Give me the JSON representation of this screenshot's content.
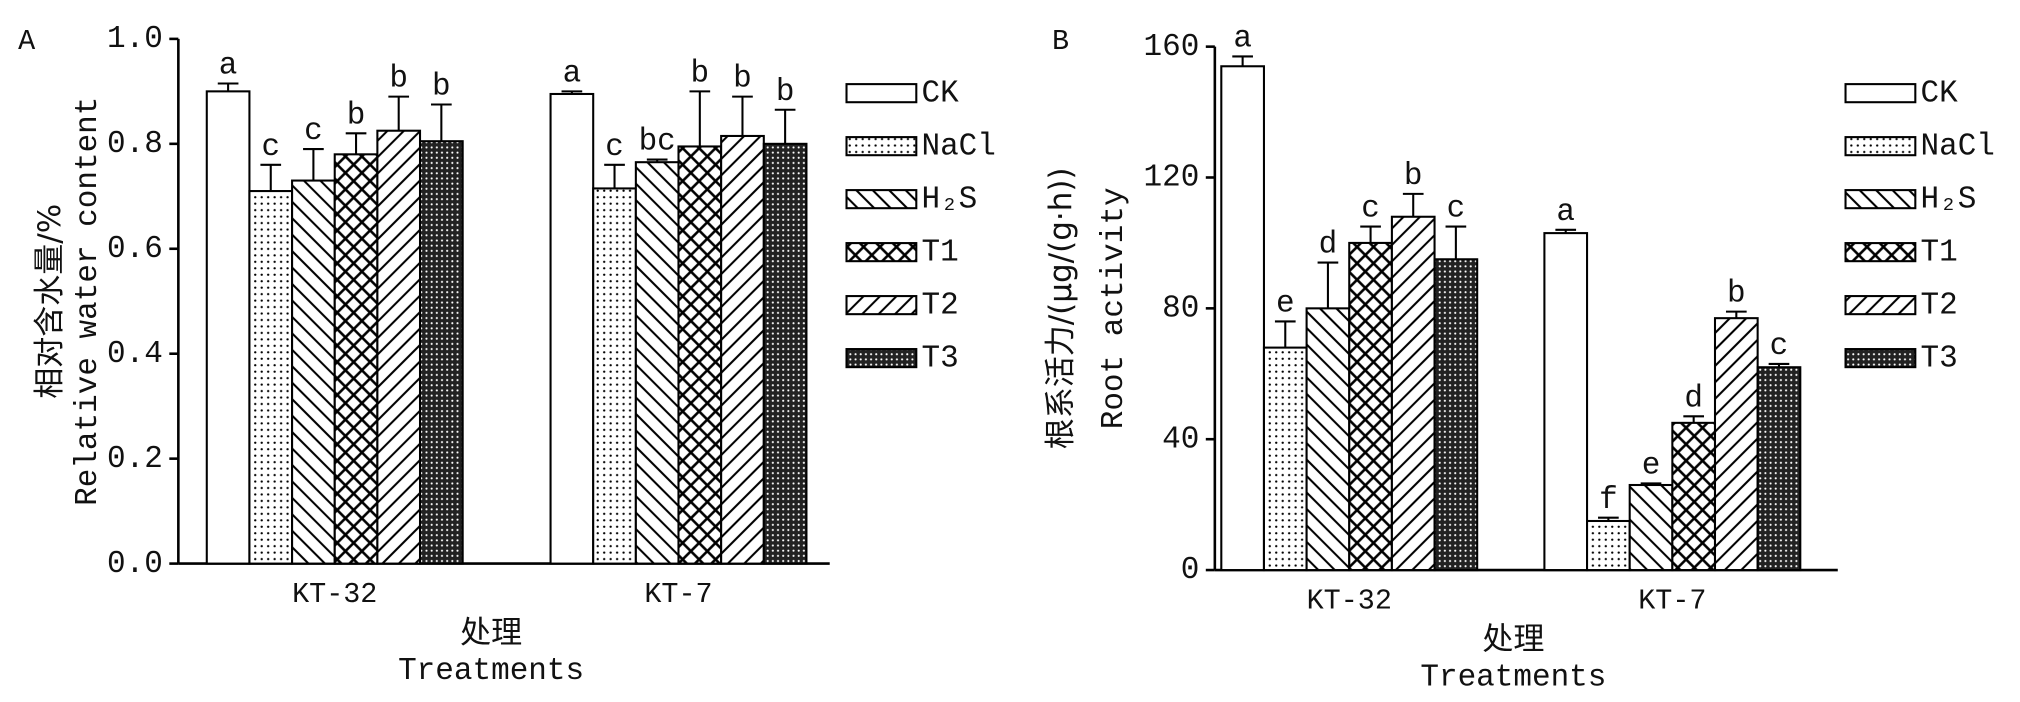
{
  "chart_data": [
    {
      "type": "bar",
      "panel": "A",
      "ylabel": [
        "相对含水量/%",
        "Relative water content"
      ],
      "xlabel": [
        "处理",
        "Treatments"
      ],
      "categories": [
        "KT-32",
        "KT-7"
      ],
      "ylim": [
        0,
        1.0
      ],
      "yticks": [
        {
          "value": 0,
          "label": "0.0"
        },
        0.2,
        0.4,
        0.6,
        0.8,
        {
          "value": 1.0,
          "label": "1.0"
        }
      ],
      "series": [
        {
          "name": "CK",
          "color": "#ffffff",
          "pattern": "solid",
          "values": [
            0.9,
            0.895
          ],
          "errors": [
            0.015,
            0.005
          ],
          "letters": [
            "a",
            "a"
          ]
        },
        {
          "name": "NaCl",
          "color": "#ffffff",
          "pattern": "dots",
          "values": [
            0.71,
            0.715
          ],
          "errors": [
            0.05,
            0.045
          ],
          "letters": [
            "c",
            "c"
          ]
        },
        {
          "name": "H₂S",
          "color": "#ffffff",
          "pattern": "backslash",
          "values": [
            0.73,
            0.765
          ],
          "errors": [
            0.06,
            0.005
          ],
          "letters": [
            "c",
            "bc"
          ]
        },
        {
          "name": "T1",
          "color": "#ffffff",
          "pattern": "crosshatch",
          "values": [
            0.78,
            0.795
          ],
          "errors": [
            0.04,
            0.105
          ],
          "letters": [
            "b",
            "b"
          ]
        },
        {
          "name": "T2",
          "color": "#ffffff",
          "pattern": "slash",
          "values": [
            0.825,
            0.815
          ],
          "errors": [
            0.065,
            0.075
          ],
          "letters": [
            "b",
            "b"
          ]
        },
        {
          "name": "T3",
          "color": "#222222",
          "pattern": "dense",
          "values": [
            0.805,
            0.8
          ],
          "errors": [
            0.07,
            0.065
          ],
          "letters": [
            "b",
            "b"
          ]
        }
      ]
    },
    {
      "type": "bar",
      "panel": "B",
      "ylabel": [
        "根系活力/(μg/(g·h))",
        "Root activity"
      ],
      "xlabel": [
        "处理",
        "Treatments"
      ],
      "categories": [
        "KT-32",
        "KT-7"
      ],
      "ylim": [
        0,
        160
      ],
      "yticks": [
        0,
        40,
        80,
        120,
        160
      ],
      "series": [
        {
          "name": "CK",
          "color": "#ffffff",
          "pattern": "solid",
          "values": [
            154,
            103
          ],
          "errors": [
            3,
            1
          ],
          "letters": [
            "a",
            "a"
          ]
        },
        {
          "name": "NaCl",
          "color": "#ffffff",
          "pattern": "dots",
          "values": [
            68,
            15
          ],
          "errors": [
            8,
            1
          ],
          "letters": [
            "e",
            "f"
          ]
        },
        {
          "name": "H₂S",
          "color": "#ffffff",
          "pattern": "backslash",
          "values": [
            80,
            26
          ],
          "errors": [
            14,
            0.5
          ],
          "letters": [
            "d",
            "e"
          ]
        },
        {
          "name": "T1",
          "color": "#ffffff",
          "pattern": "crosshatch",
          "values": [
            100,
            45
          ],
          "errors": [
            5,
            2
          ],
          "letters": [
            "c",
            "d"
          ]
        },
        {
          "name": "T2",
          "color": "#ffffff",
          "pattern": "slash",
          "values": [
            108,
            77
          ],
          "errors": [
            7,
            2
          ],
          "letters": [
            "b",
            "b"
          ]
        },
        {
          "name": "T3",
          "color": "#222222",
          "pattern": "dense",
          "values": [
            95,
            62
          ],
          "errors": [
            10,
            1
          ],
          "letters": [
            "c",
            "c"
          ]
        }
      ]
    }
  ]
}
